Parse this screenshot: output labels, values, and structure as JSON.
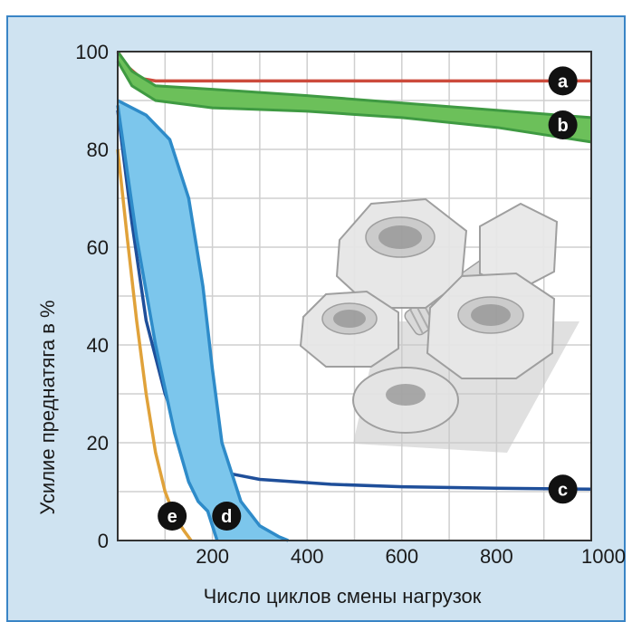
{
  "chart_data": {
    "type": "line",
    "xlabel": "Число циклов смены нагрузок",
    "ylabel": "Усилие преднатяга в %",
    "xlim": [
      0,
      1000
    ],
    "ylim": [
      0,
      100
    ],
    "x_ticks": [
      "200",
      "400",
      "600",
      "800",
      "1000"
    ],
    "y_ticks": [
      "0",
      "20",
      "40",
      "60",
      "80",
      "100"
    ],
    "grid": true,
    "series": [
      {
        "name": "a",
        "type": "line",
        "color": "#cc4b3c",
        "x": [
          0,
          20,
          50,
          80,
          150,
          300,
          600,
          1000
        ],
        "y": [
          100,
          97,
          94.5,
          94,
          94,
          94,
          94,
          94
        ]
      },
      {
        "name": "b",
        "type": "band",
        "color": "#3f9a42",
        "fill": "#6cc05a",
        "x": [
          0,
          30,
          80,
          200,
          400,
          600,
          800,
          1000
        ],
        "upper": [
          100,
          96,
          93,
          92.3,
          91,
          89.5,
          88,
          86.5
        ],
        "lower": [
          98,
          93,
          90,
          88.5,
          87.8,
          86.5,
          84.5,
          81.5
        ]
      },
      {
        "name": "c",
        "type": "line",
        "color": "#1f4f9a",
        "x": [
          0,
          30,
          60,
          100,
          140,
          180,
          220,
          300,
          450,
          600,
          800,
          1000
        ],
        "y": [
          88,
          65,
          45,
          30,
          20,
          16,
          14,
          12.5,
          11.5,
          11,
          10.7,
          10.5
        ]
      },
      {
        "name": "d",
        "type": "band",
        "color": "#2e8bc9",
        "fill": "#7cc6ec",
        "x_left": [
          0,
          40,
          80,
          120,
          150,
          170,
          190,
          200,
          210
        ],
        "y_left": [
          89,
          62,
          40,
          22,
          12,
          8,
          6,
          3,
          0
        ],
        "x_right": [
          0,
          60,
          110,
          150,
          180,
          200,
          220,
          260,
          300,
          340,
          360
        ],
        "y_right": [
          90,
          87,
          82,
          70,
          52,
          35,
          20,
          8,
          3,
          0.8,
          0
        ]
      },
      {
        "name": "e",
        "type": "line",
        "color": "#e0a23a",
        "x": [
          0,
          20,
          40,
          60,
          80,
          100,
          120,
          140,
          155
        ],
        "y": [
          80,
          62,
          45,
          30,
          18,
          10,
          5,
          2,
          0
        ]
      }
    ],
    "markers": [
      {
        "label": "a",
        "x": 940,
        "y": 94
      },
      {
        "label": "b",
        "x": 940,
        "y": 85
      },
      {
        "label": "c",
        "x": 940,
        "y": 10.5
      },
      {
        "label": "e",
        "x": 115,
        "y": 5
      },
      {
        "label": "d",
        "x": 230,
        "y": 5
      }
    ]
  },
  "illustration": {
    "name": "nuts-and-bolt-icon"
  }
}
